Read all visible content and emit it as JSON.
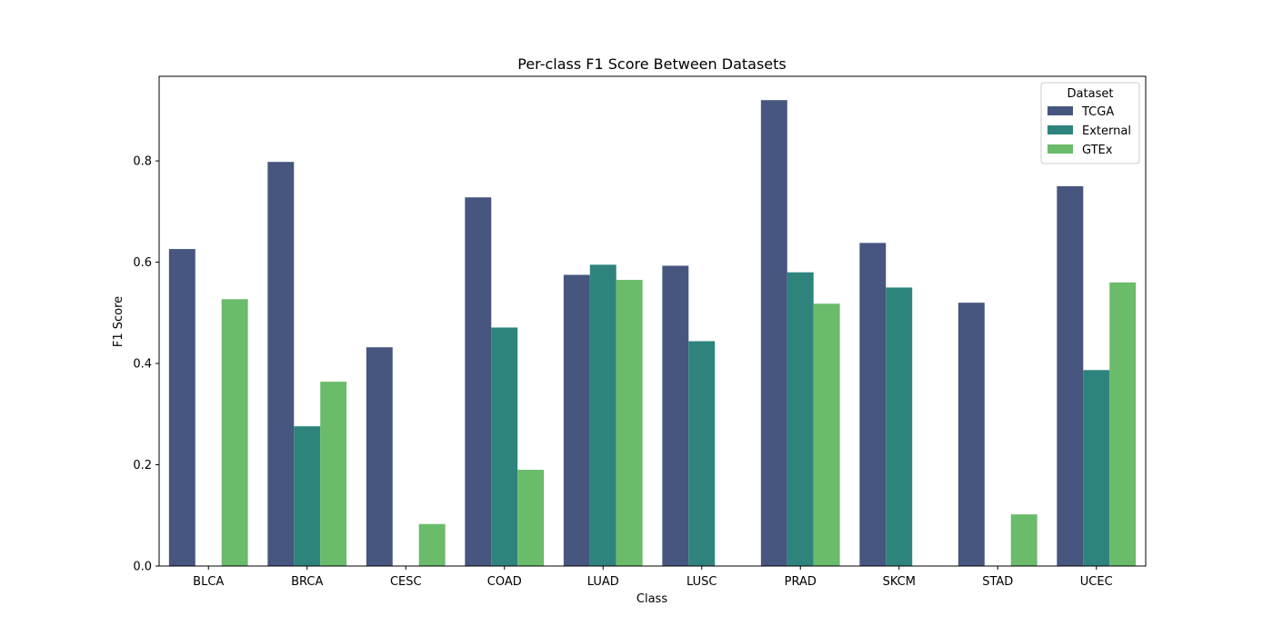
{
  "chart_data": {
    "type": "bar",
    "title": "Per-class F1 Score Between Datasets",
    "xlabel": "Class",
    "ylabel": "F1 Score",
    "ylim": [
      0,
      0.967
    ],
    "yticks": [
      "0.0",
      "0.2",
      "0.4",
      "0.6",
      "0.8"
    ],
    "grid": false,
    "categories": [
      "BLCA",
      "BRCA",
      "CESC",
      "COAD",
      "LUAD",
      "LUSC",
      "PRAD",
      "SKCM",
      "STAD",
      "UCEC"
    ],
    "legend": {
      "title": "Dataset",
      "position": "top-right"
    },
    "series": [
      {
        "name": "TCGA",
        "color": "#46567f",
        "values": [
          0.626,
          0.798,
          0.432,
          0.728,
          0.575,
          0.593,
          0.92,
          0.638,
          0.52,
          0.75
        ]
      },
      {
        "name": "External",
        "color": "#2e847d",
        "values": [
          0,
          0.276,
          0,
          0.471,
          0.595,
          0.444,
          0.58,
          0.55,
          0,
          0.387
        ]
      },
      {
        "name": "GTEx",
        "color": "#6abb6a",
        "values": [
          0.527,
          0.364,
          0.083,
          0.19,
          0.565,
          0,
          0.518,
          0,
          0.102,
          0.56
        ]
      }
    ]
  }
}
